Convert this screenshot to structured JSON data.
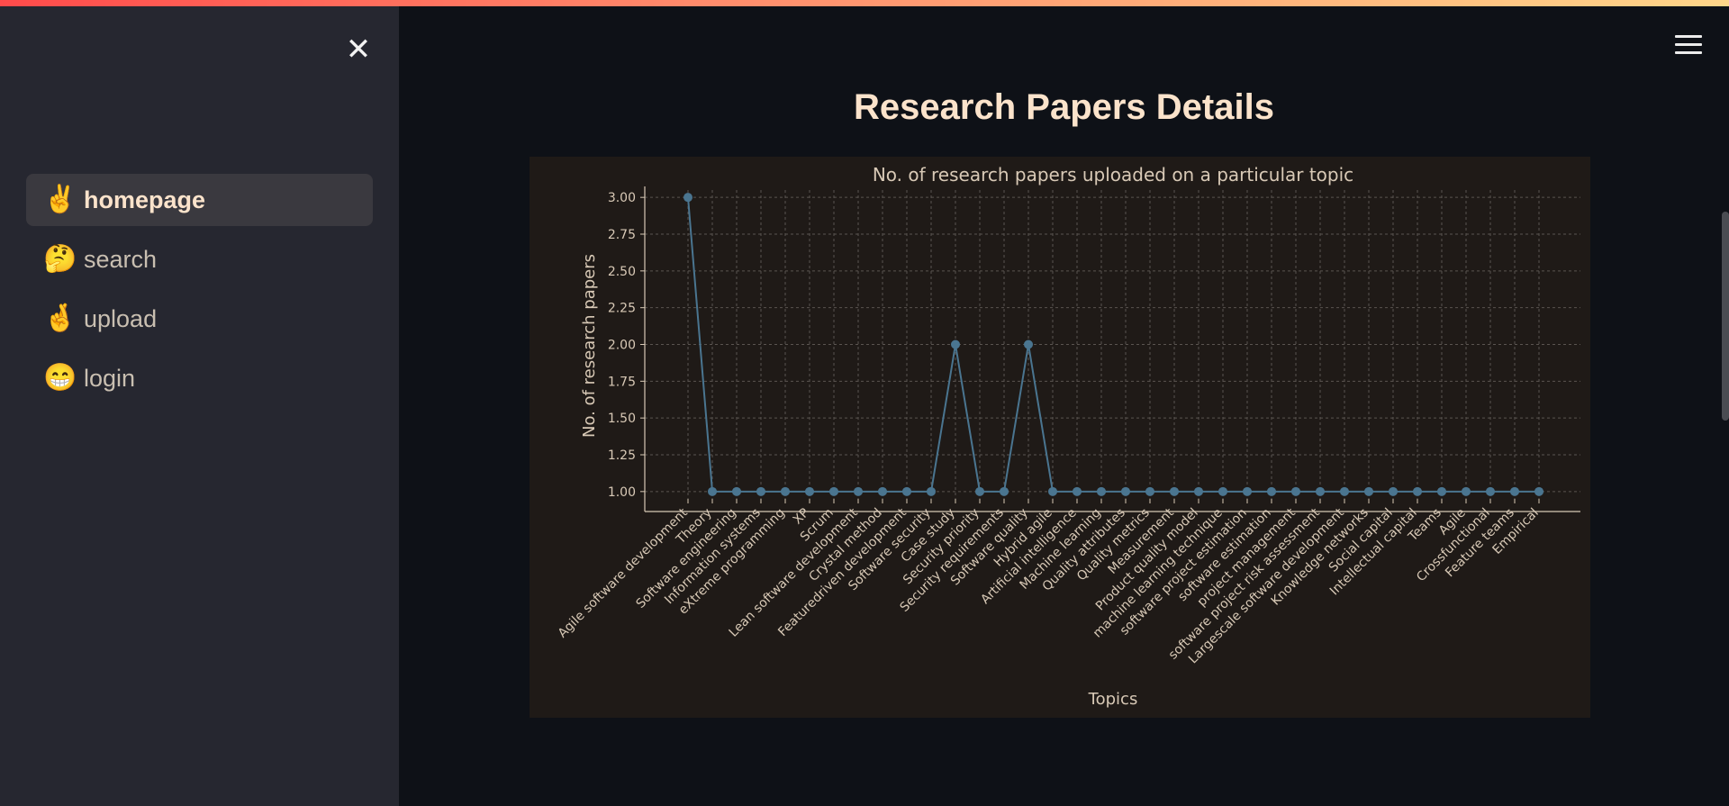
{
  "sidebar": {
    "close_icon": "close-icon",
    "items": [
      {
        "emoji": "✌️",
        "label": "homepage",
        "active": true
      },
      {
        "emoji": "🤔",
        "label": "search",
        "active": false
      },
      {
        "emoji": "🤞",
        "label": "upload",
        "active": false
      },
      {
        "emoji": "😁",
        "label": "login",
        "active": false
      }
    ]
  },
  "header": {
    "menu_icon": "hamburger-menu-icon"
  },
  "main": {
    "title": "Research Papers Details"
  },
  "colors": {
    "accent_bar": [
      "#ff4b4b",
      "#ffd68a"
    ],
    "title": "#fbe3cb",
    "line": "#4a7590",
    "chart_bg": "#1f1a17"
  },
  "chart_data": {
    "type": "line",
    "title": "No. of research papers uploaded on a particular topic",
    "xlabel": "Topics",
    "ylabel": "No. of research papers",
    "ylim": [
      0.95,
      3.05
    ],
    "yticks": [
      "1.00",
      "1.25",
      "1.50",
      "1.75",
      "2.00",
      "2.25",
      "2.50",
      "2.75",
      "3.00"
    ],
    "grid": true,
    "categories": [
      "Agile software development",
      "Theory",
      "Software engineering",
      "Information systems",
      "eXtreme programming",
      "XP",
      "Scrum",
      "Lean software development",
      "Crystal method",
      "Featuredriven development",
      "Software security",
      "Case study",
      "Security priority",
      "Security requirements",
      "Software quality",
      "Hybrid agile",
      "Artificial intelligence",
      "Machine learning",
      "Quality attributes",
      "Quality metrics",
      "Measurement",
      "Product quality model",
      "machine learning technique",
      "software project estimation",
      "software estimation",
      "project management",
      "software project risk assessment",
      "Largescale software development",
      "Knowledge networks",
      "Social capital",
      "Intellectual capital",
      "Teams",
      "Agile",
      "Crossfunctional",
      "Feature teams",
      "Empirical"
    ],
    "values": [
      3,
      1,
      1,
      1,
      1,
      1,
      1,
      1,
      1,
      1,
      1,
      2,
      1,
      1,
      2,
      1,
      1,
      1,
      1,
      1,
      1,
      1,
      1,
      1,
      1,
      1,
      1,
      1,
      1,
      1,
      1,
      1,
      1,
      1,
      1,
      1
    ]
  }
}
